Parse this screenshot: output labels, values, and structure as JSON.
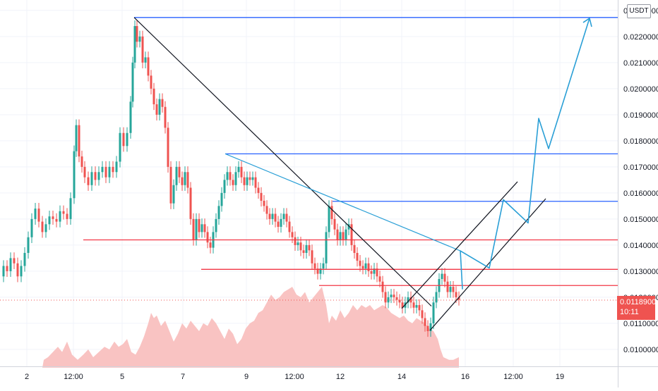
{
  "chart_data": {
    "type": "candlestick",
    "currency": "USDT",
    "ylim": [
      0.00935,
      0.0234
    ],
    "y_ticks": [
      "0.0100000",
      "0.0110000",
      "0.0120000",
      "0.0130000",
      "0.0140000",
      "0.0150000",
      "0.0160000",
      "0.0170000",
      "0.0180000",
      "0.0190000",
      "0.0200000",
      "0.0210000",
      "0.0220000",
      "0.0230000"
    ],
    "y_tick_values": [
      0.01,
      0.011,
      0.012,
      0.013,
      0.014,
      0.015,
      0.016,
      0.017,
      0.018,
      0.019,
      0.02,
      0.021,
      0.022,
      0.023
    ],
    "x_ticks": [
      "2",
      "12:00",
      "5",
      "7",
      "9",
      "12:00",
      "12",
      "14",
      "16",
      "12:00",
      "19"
    ],
    "last_price": "0.0118900",
    "countdown": "10:11",
    "last_price_value": 0.01189,
    "price_path": [
      [
        0,
        0.0128
      ],
      [
        5,
        0.0132
      ],
      [
        10,
        0.013
      ],
      [
        15,
        0.0135
      ],
      [
        20,
        0.0133
      ],
      [
        25,
        0.0128
      ],
      [
        30,
        0.0132
      ],
      [
        35,
        0.0137
      ],
      [
        40,
        0.0143
      ],
      [
        45,
        0.015
      ],
      [
        50,
        0.0154
      ],
      [
        55,
        0.0149
      ],
      [
        60,
        0.0145
      ],
      [
        65,
        0.0148
      ],
      [
        70,
        0.0151
      ],
      [
        75,
        0.015
      ],
      [
        80,
        0.0149
      ],
      [
        85,
        0.0153
      ],
      [
        90,
        0.0152
      ],
      [
        95,
        0.015
      ],
      [
        100,
        0.0158
      ],
      [
        105,
        0.0176
      ],
      [
        108,
        0.0186
      ],
      [
        112,
        0.0174
      ],
      [
        116,
        0.017
      ],
      [
        120,
        0.0166
      ],
      [
        125,
        0.0163
      ],
      [
        130,
        0.0168
      ],
      [
        135,
        0.0165
      ],
      [
        140,
        0.0168
      ],
      [
        145,
        0.017
      ],
      [
        150,
        0.0166
      ],
      [
        155,
        0.017
      ],
      [
        160,
        0.0168
      ],
      [
        165,
        0.0172
      ],
      [
        170,
        0.0183
      ],
      [
        175,
        0.0178
      ],
      [
        180,
        0.0183
      ],
      [
        185,
        0.0195
      ],
      [
        188,
        0.021
      ],
      [
        191,
        0.0224
      ],
      [
        194,
        0.0218
      ],
      [
        198,
        0.022
      ],
      [
        202,
        0.021
      ],
      [
        206,
        0.0212
      ],
      [
        210,
        0.0205
      ],
      [
        214,
        0.02
      ],
      [
        218,
        0.0194
      ],
      [
        222,
        0.019
      ],
      [
        226,
        0.0196
      ],
      [
        230,
        0.0193
      ],
      [
        234,
        0.0185
      ],
      [
        238,
        0.017
      ],
      [
        242,
        0.0156
      ],
      [
        246,
        0.0163
      ],
      [
        250,
        0.017
      ],
      [
        254,
        0.0166
      ],
      [
        258,
        0.0163
      ],
      [
        262,
        0.0168
      ],
      [
        266,
        0.0162
      ],
      [
        270,
        0.015
      ],
      [
        274,
        0.0142
      ],
      [
        278,
        0.015
      ],
      [
        282,
        0.0145
      ],
      [
        286,
        0.0148
      ],
      [
        290,
        0.0145
      ],
      [
        294,
        0.0141
      ],
      [
        298,
        0.0139
      ],
      [
        302,
        0.0145
      ],
      [
        306,
        0.015
      ],
      [
        310,
        0.0155
      ],
      [
        314,
        0.016
      ],
      [
        318,
        0.0165
      ],
      [
        322,
        0.0168
      ],
      [
        326,
        0.0165
      ],
      [
        330,
        0.0163
      ],
      [
        334,
        0.0168
      ],
      [
        338,
        0.017
      ],
      [
        342,
        0.0166
      ],
      [
        346,
        0.0163
      ],
      [
        350,
        0.0166
      ],
      [
        354,
        0.0165
      ],
      [
        358,
        0.0166
      ],
      [
        362,
        0.0162
      ],
      [
        366,
        0.016
      ],
      [
        370,
        0.0157
      ],
      [
        374,
        0.0155
      ],
      [
        378,
        0.0152
      ],
      [
        382,
        0.015
      ],
      [
        386,
        0.0152
      ],
      [
        390,
        0.0149
      ],
      [
        394,
        0.0147
      ],
      [
        398,
        0.015
      ],
      [
        402,
        0.0152
      ],
      [
        406,
        0.0149
      ],
      [
        410,
        0.0145
      ],
      [
        414,
        0.0143
      ],
      [
        418,
        0.014
      ],
      [
        422,
        0.0141
      ],
      [
        426,
        0.0138
      ],
      [
        430,
        0.0137
      ],
      [
        434,
        0.014
      ],
      [
        438,
        0.0138
      ],
      [
        442,
        0.0133
      ],
      [
        446,
        0.0131
      ],
      [
        450,
        0.0129
      ],
      [
        454,
        0.0131
      ],
      [
        458,
        0.0133
      ],
      [
        462,
        0.0145
      ],
      [
        466,
        0.0155
      ],
      [
        470,
        0.015
      ],
      [
        474,
        0.0146
      ],
      [
        478,
        0.0142
      ],
      [
        482,
        0.0145
      ],
      [
        486,
        0.0142
      ],
      [
        490,
        0.0146
      ],
      [
        494,
        0.0148
      ],
      [
        498,
        0.014
      ],
      [
        502,
        0.0137
      ],
      [
        506,
        0.0134
      ],
      [
        510,
        0.0132
      ],
      [
        514,
        0.0131
      ],
      [
        518,
        0.0133
      ],
      [
        522,
        0.013
      ],
      [
        526,
        0.0129
      ],
      [
        530,
        0.0131
      ],
      [
        534,
        0.0128
      ],
      [
        538,
        0.0126
      ],
      [
        542,
        0.0122
      ],
      [
        546,
        0.0118
      ],
      [
        550,
        0.012
      ],
      [
        554,
        0.0121
      ],
      [
        558,
        0.012
      ],
      [
        562,
        0.0119
      ],
      [
        566,
        0.0118
      ],
      [
        570,
        0.0116
      ],
      [
        574,
        0.0118
      ],
      [
        578,
        0.012
      ],
      [
        582,
        0.0118
      ],
      [
        586,
        0.0116
      ],
      [
        590,
        0.0117
      ],
      [
        594,
        0.0115
      ],
      [
        598,
        0.0112
      ],
      [
        602,
        0.0109
      ],
      [
        606,
        0.0107
      ],
      [
        610,
        0.011
      ],
      [
        614,
        0.0118
      ],
      [
        618,
        0.0122
      ],
      [
        622,
        0.0127
      ],
      [
        626,
        0.0129
      ],
      [
        630,
        0.0126
      ],
      [
        634,
        0.0122
      ],
      [
        638,
        0.0124
      ],
      [
        642,
        0.0122
      ],
      [
        646,
        0.012
      ],
      [
        650,
        0.0119
      ]
    ],
    "volume_path": [
      [
        60,
        0.0093
      ],
      [
        62,
        0.0096
      ],
      [
        68,
        0.0097
      ],
      [
        75,
        0.0099
      ],
      [
        82,
        0.0101
      ],
      [
        88,
        0.0099
      ],
      [
        95,
        0.0103
      ],
      [
        102,
        0.0098
      ],
      [
        110,
        0.0096
      ],
      [
        118,
        0.0098
      ],
      [
        125,
        0.01
      ],
      [
        132,
        0.0097
      ],
      [
        140,
        0.0099
      ],
      [
        148,
        0.0101
      ],
      [
        155,
        0.01
      ],
      [
        162,
        0.0103
      ],
      [
        168,
        0.0101
      ],
      [
        174,
        0.0102
      ],
      [
        180,
        0.0104
      ],
      [
        186,
        0.0099
      ],
      [
        192,
        0.0098
      ],
      [
        198,
        0.0101
      ],
      [
        204,
        0.0105
      ],
      [
        210,
        0.011
      ],
      [
        214,
        0.0114
      ],
      [
        218,
        0.0112
      ],
      [
        222,
        0.0113
      ],
      [
        228,
        0.0109
      ],
      [
        234,
        0.0111
      ],
      [
        240,
        0.0107
      ],
      [
        246,
        0.0103
      ],
      [
        252,
        0.0106
      ],
      [
        258,
        0.011
      ],
      [
        264,
        0.0108
      ],
      [
        270,
        0.0111
      ],
      [
        276,
        0.0109
      ],
      [
        282,
        0.0107
      ],
      [
        288,
        0.011
      ],
      [
        294,
        0.0109
      ],
      [
        300,
        0.0112
      ],
      [
        306,
        0.011
      ],
      [
        312,
        0.0107
      ],
      [
        318,
        0.0104
      ],
      [
        324,
        0.0108
      ],
      [
        330,
        0.0106
      ],
      [
        336,
        0.0102
      ],
      [
        342,
        0.0104
      ],
      [
        348,
        0.0108
      ],
      [
        354,
        0.011
      ],
      [
        360,
        0.0111
      ],
      [
        366,
        0.0114
      ],
      [
        372,
        0.0115
      ],
      [
        378,
        0.0118
      ],
      [
        384,
        0.0121
      ],
      [
        390,
        0.0119
      ],
      [
        396,
        0.012
      ],
      [
        402,
        0.0122
      ],
      [
        408,
        0.0123
      ],
      [
        414,
        0.0124
      ],
      [
        420,
        0.0121
      ],
      [
        426,
        0.012
      ],
      [
        432,
        0.0122
      ],
      [
        438,
        0.0118
      ],
      [
        444,
        0.012
      ],
      [
        450,
        0.0122
      ],
      [
        456,
        0.0124
      ],
      [
        462,
        0.0117
      ],
      [
        466,
        0.011
      ],
      [
        470,
        0.0113
      ],
      [
        476,
        0.0111
      ],
      [
        482,
        0.0115
      ],
      [
        488,
        0.0112
      ],
      [
        494,
        0.0114
      ],
      [
        500,
        0.0117
      ],
      [
        506,
        0.0115
      ],
      [
        512,
        0.0117
      ],
      [
        518,
        0.0116
      ],
      [
        524,
        0.0117
      ],
      [
        530,
        0.0115
      ],
      [
        536,
        0.0116
      ],
      [
        542,
        0.0117
      ],
      [
        548,
        0.0116
      ],
      [
        554,
        0.0114
      ],
      [
        560,
        0.0113
      ],
      [
        566,
        0.0112
      ],
      [
        572,
        0.0113
      ],
      [
        578,
        0.0111
      ],
      [
        584,
        0.011
      ],
      [
        590,
        0.0112
      ],
      [
        596,
        0.0111
      ],
      [
        602,
        0.011
      ],
      [
        608,
        0.0108
      ],
      [
        614,
        0.0107
      ],
      [
        620,
        0.0104
      ],
      [
        624,
        0.01
      ],
      [
        628,
        0.0097
      ],
      [
        636,
        0.0096
      ],
      [
        642,
        0.0096
      ],
      [
        650,
        0.0097
      ],
      [
        650,
        0.0093
      ]
    ],
    "horizontal_levels": [
      {
        "color": "#2962ff",
        "value": 0.02273,
        "from": 190,
        "to": 875
      },
      {
        "color": "#2962ff",
        "value": 0.0175,
        "from": 319,
        "to": 875
      },
      {
        "color": "#2962ff",
        "value": 0.01568,
        "from": 471,
        "to": 875
      },
      {
        "color": "#f23645",
        "value": 0.0142,
        "from": 118,
        "to": 875
      },
      {
        "color": "#f23645",
        "value": 0.01307,
        "from": 285,
        "to": 875
      },
      {
        "color": "#f23645",
        "value": 0.01245,
        "from": 452,
        "to": 875
      }
    ],
    "trend_lines": [
      {
        "color": "#131722",
        "from": [
          190,
          0.02273
        ],
        "to": [
          611,
          0.01166
        ]
      },
      {
        "color": "#2a9fd6",
        "from": [
          319,
          0.0175
        ],
        "to": [
          652,
          0.01378
        ]
      },
      {
        "color": "#131722",
        "from": [
          569,
          0.01157
        ],
        "to": [
          733,
          0.01643
        ]
      },
      {
        "color": "#131722",
        "from": [
          609,
          0.01073
        ],
        "to": [
          773,
          0.01578
        ]
      }
    ],
    "projection": [
      [
        652,
        0.01378
      ],
      [
        655,
        0.01232
      ],
      [
        652,
        0.01378
      ],
      [
        693,
        0.01312
      ],
      [
        713,
        0.01574
      ],
      [
        748,
        0.01485
      ],
      [
        763,
        0.01886
      ],
      [
        777,
        0.0177
      ],
      [
        835,
        0.0227
      ]
    ],
    "colors": {
      "up": "#26a69a",
      "down": "#ef5350",
      "volume": "#f9c3c2",
      "grid": "#f0f3fa",
      "projection": "#2a9fd6"
    }
  }
}
